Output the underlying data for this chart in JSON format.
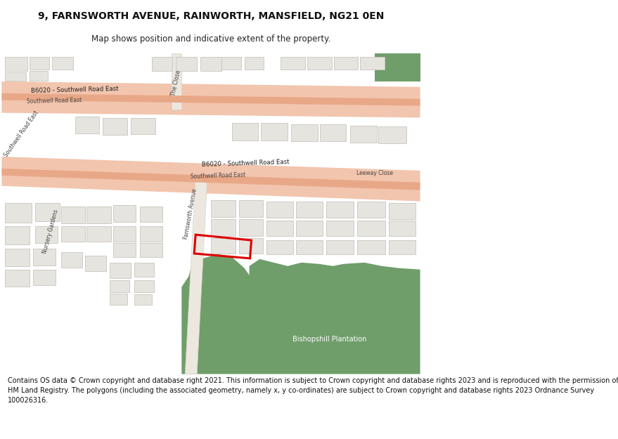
{
  "title": "9, FARNSWORTH AVENUE, RAINWORTH, MANSFIELD, NG21 0EN",
  "subtitle": "Map shows position and indicative extent of the property.",
  "footer_lines": [
    "Contains OS data © Crown copyright and database right 2021. This information is subject to Crown copyright and database rights 2023 and is reproduced with the permission of",
    "HM Land Registry. The polygons (including the associated geometry, namely x, y co-ordinates) are subject to Crown copyright and database rights 2023 Ordnance Survey",
    "100026316."
  ],
  "map_bg": "#f5f4ef",
  "road_light": "#f2c5ae",
  "road_dark": "#e8a888",
  "green": "#6f9e6a",
  "bld": "#e6e4de",
  "bld_e": "#c8c5be",
  "plot_color": "#dd0000",
  "white": "#ffffff"
}
